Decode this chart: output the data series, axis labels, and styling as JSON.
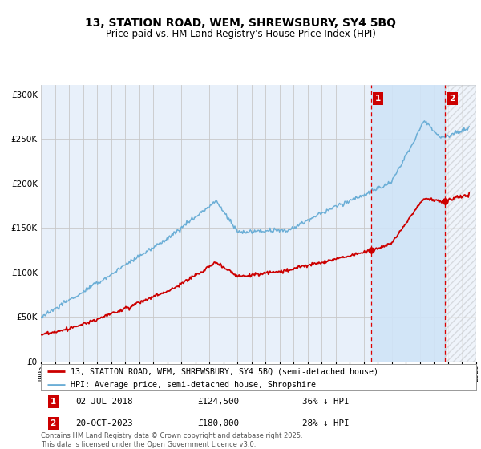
{
  "title": "13, STATION ROAD, WEM, SHREWSBURY, SY4 5BQ",
  "subtitle": "Price paid vs. HM Land Registry's House Price Index (HPI)",
  "property_label": "13, STATION ROAD, WEM, SHREWSBURY, SY4 5BQ (semi-detached house)",
  "hpi_label": "HPI: Average price, semi-detached house, Shropshire",
  "sale1_date": "02-JUL-2018",
  "sale1_price": 124500,
  "sale1_pct": "36% ↓ HPI",
  "sale2_date": "20-OCT-2023",
  "sale2_price": 180000,
  "sale2_pct": "28% ↓ HPI",
  "sale1_year": 2018.5,
  "sale2_year": 2023.8,
  "ylim": [
    0,
    310000
  ],
  "xlim_min": 1995,
  "xlim_max": 2026,
  "hpi_color": "#6BAED6",
  "price_color": "#CC0000",
  "vline_color": "#DD0000",
  "grid_color": "#C8C8C8",
  "background_color": "#E8F0FA",
  "shade_color": "#D0E4F7",
  "footnote": "Contains HM Land Registry data © Crown copyright and database right 2025.\nThis data is licensed under the Open Government Licence v3.0."
}
